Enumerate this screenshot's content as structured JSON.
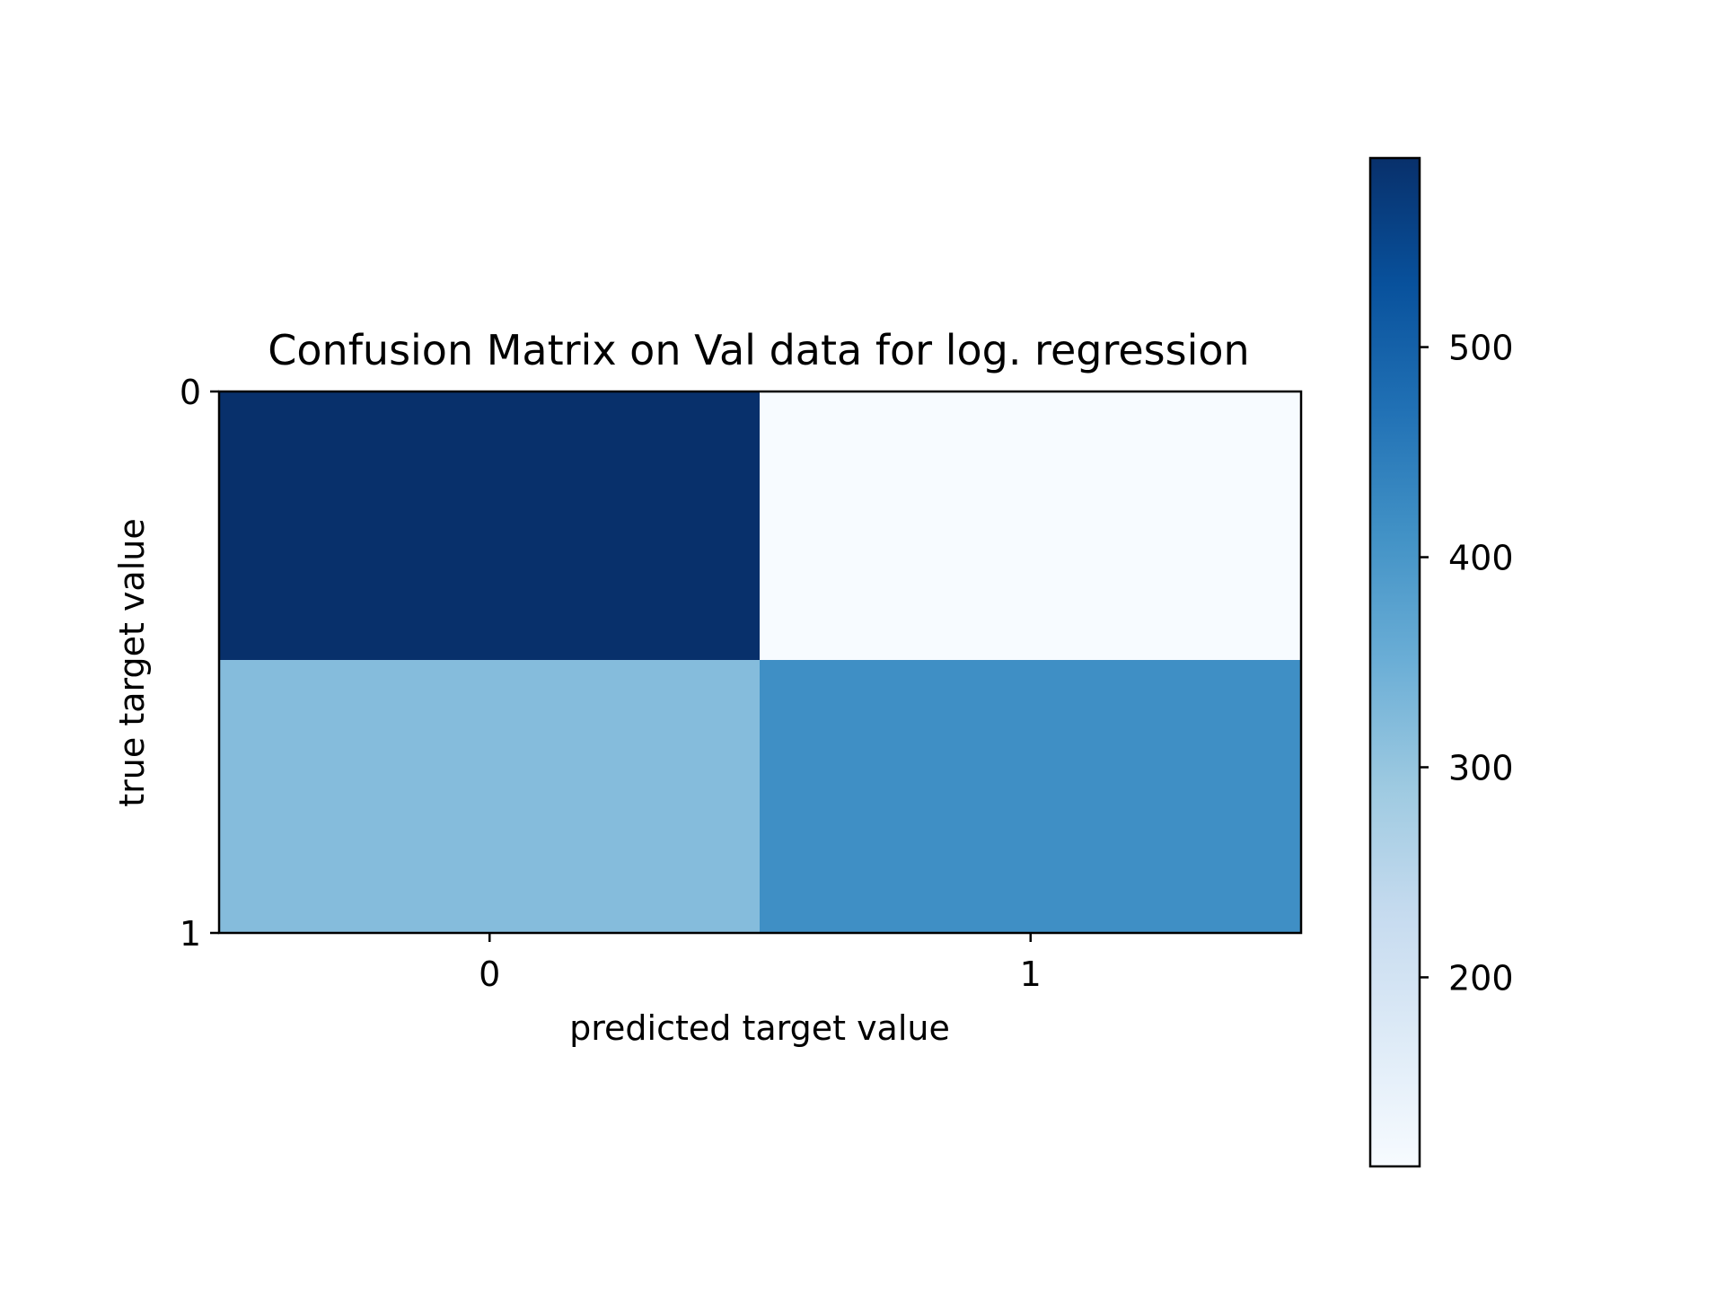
{
  "chart_data": {
    "type": "heatmap",
    "title": "Confusion Matrix on Val data for log. regression",
    "xlabel": "predicted target value",
    "ylabel": "true target value",
    "x_categories": [
      "0",
      "1"
    ],
    "y_categories": [
      "0",
      "1"
    ],
    "values": [
      [
        590,
        110
      ],
      [
        320,
        415
      ]
    ],
    "colormap": "Blues",
    "colorbar": {
      "range": [
        110,
        590
      ],
      "ticks": [
        200,
        300,
        400,
        500
      ],
      "tick_labels": [
        "200",
        "300",
        "400",
        "500"
      ]
    }
  }
}
